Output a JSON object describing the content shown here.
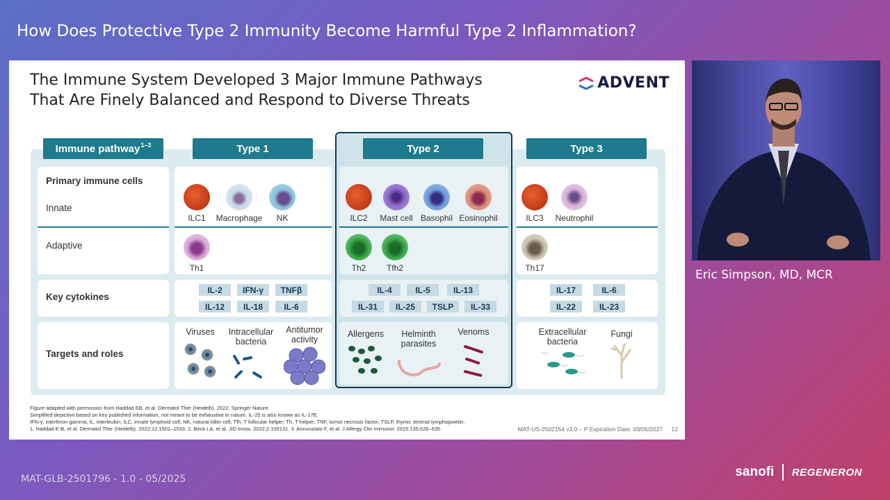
{
  "session_title": "How Does Protective Type 2 Immunity Become Harmful Type 2 Inflammation?",
  "slide": {
    "title_line1": "The Immune System Developed 3 Major Immune Pathways",
    "title_line2": "That Are Finely Balanced and Respond to Diverse Threats",
    "logo_text": "ADVENT",
    "headers": {
      "pathway": "Immune pathway",
      "pathway_sup": "1–3",
      "type1": "Type 1",
      "type2": "Type 2",
      "type3": "Type 3"
    },
    "row_labels": {
      "primary": "Primary immune cells",
      "innate": "Innate",
      "adaptive": "Adaptive",
      "cytokines": "Key cytokines",
      "targets": "Targets and roles"
    },
    "type1": {
      "innate": [
        "ILC1",
        "Macrophage",
        "NK"
      ],
      "adaptive": [
        "Th1"
      ],
      "cytokines": [
        "IL-2",
        "IFN-γ",
        "TNFβ",
        "IL-12",
        "IL-18",
        "IL-6"
      ],
      "targets": [
        "Viruses",
        "Intracellular bacteria",
        "Antitumor activity"
      ]
    },
    "type2": {
      "innate": [
        "ILC2",
        "Mast cell",
        "Basophil",
        "Eosinophil"
      ],
      "adaptive": [
        "Th2",
        "Tfh2"
      ],
      "cytokines": [
        "IL-4",
        "IL-5",
        "IL-13",
        "IL-31",
        "IL-25",
        "TSLP",
        "IL-33"
      ],
      "targets": [
        "Allergens",
        "Helminth parasites",
        "Venoms"
      ]
    },
    "type3": {
      "innate": [
        "ILC3",
        "Neutrophil"
      ],
      "adaptive": [
        "Th17"
      ],
      "cytokines": [
        "IL-17",
        "IL-6",
        "IL-22",
        "IL-23"
      ],
      "targets": [
        "Extracellular bacteria",
        "Fungi"
      ]
    },
    "footnotes": [
      "Figure adapted with permission from Haddad EB, et al. Dermatol Ther (Heidelb). 2022, Springer Nature.",
      "Simplified depiction based on key published information, not meant to be exhaustive in nature. IL-25 is also known as IL-17E.",
      "IFN-γ, interferon gamma; IL, interleukin; ILC, innate lymphoid cell; NK, natural killer cell; Tfh, T follicular helper; Th, T-helper; TNF, tumor necrosis factor; TSLP, thymic stromal lymphopoietin.",
      "1. Haddad E-B, et al. Dermatol Ther (Heidelb). 2022;12:1501–1533. 2. Beck LA, et al. JID Innov. 2022;2:100131. 3. Annunziato F, et al. J Allergy Clin Immunol. 2015;135:626–635."
    ],
    "slide_id": "MAT-US-2502154 v3.0 – P Expiration Date: 03/05/2027",
    "page_number": "12"
  },
  "speaker_name": "Eric Simpson, MD, MCR",
  "mat_code": "MAT-GLB-2501796 - 1.0 - 05/2025",
  "brand": {
    "sanofi": "sanofi",
    "regeneron": "REGENERON"
  },
  "colors": {
    "header_teal": "#1e7a8c",
    "frame_navy": "#113a55",
    "cytokine_chip": "#c6dae3"
  }
}
